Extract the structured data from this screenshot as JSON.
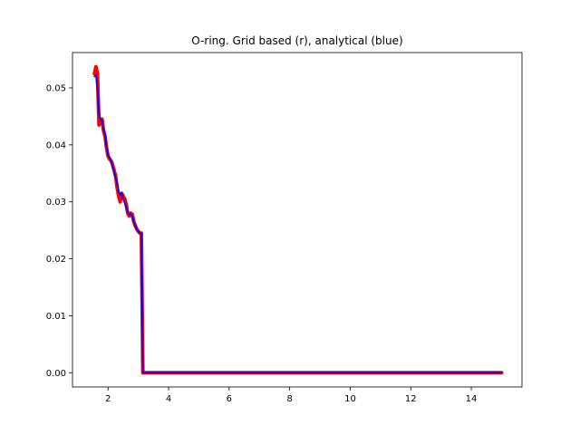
{
  "chart_data": {
    "type": "line",
    "title": "O-ring. Grid based (r), analytical (blue)",
    "xlabel": "",
    "ylabel": "",
    "xlim": [
      0.825,
      15.675
    ],
    "ylim": [
      -0.0025,
      0.0562
    ],
    "x_ticks": [
      2,
      4,
      6,
      8,
      10,
      12,
      14
    ],
    "x_tick_labels": [
      "2",
      "4",
      "6",
      "8",
      "10",
      "12",
      "14"
    ],
    "y_ticks": [
      0.0,
      0.01,
      0.02,
      0.03,
      0.04,
      0.05
    ],
    "y_tick_labels": [
      "0.00",
      "0.01",
      "0.02",
      "0.03",
      "0.04",
      "0.05"
    ],
    "grid": false,
    "legend": "none",
    "series": [
      {
        "color": "#ff0000",
        "line_width": "thick",
        "x": [
          1.55,
          1.6,
          1.65,
          1.7,
          1.75,
          1.8,
          1.85,
          1.9,
          1.95,
          2.0,
          2.05,
          2.1,
          2.15,
          2.2,
          2.25,
          2.3,
          2.35,
          2.4,
          2.45,
          2.5,
          2.55,
          2.6,
          2.65,
          2.7,
          2.75,
          2.8,
          2.85,
          2.9,
          2.95,
          3.0,
          3.05,
          3.1,
          3.15,
          3.2,
          3.25,
          15.0
        ],
        "y": [
          0.0525,
          0.0537,
          0.0525,
          0.0435,
          0.0445,
          0.0445,
          0.0425,
          0.0415,
          0.0395,
          0.038,
          0.0375,
          0.0372,
          0.0365,
          0.0355,
          0.0345,
          0.0325,
          0.031,
          0.03,
          0.0315,
          0.031,
          0.0305,
          0.0295,
          0.028,
          0.0275,
          0.028,
          0.0278,
          0.0265,
          0.0258,
          0.0252,
          0.0248,
          0.0245,
          0.0245,
          0.0,
          0.0,
          0.0,
          0.0
        ]
      },
      {
        "color": "#0000ff",
        "line_width": "normal",
        "x": [
          1.55,
          1.6,
          1.65,
          1.7,
          1.75,
          1.8,
          1.85,
          1.9,
          1.95,
          2.0,
          2.05,
          2.1,
          2.15,
          2.2,
          2.25,
          2.3,
          2.35,
          2.4,
          2.45,
          2.5,
          2.55,
          2.6,
          2.65,
          2.7,
          2.75,
          2.8,
          2.85,
          2.9,
          2.95,
          3.0,
          3.05,
          3.1,
          3.15,
          3.2,
          3.25,
          15.0
        ],
        "y": [
          0.052,
          0.0522,
          0.0498,
          0.0455,
          0.0445,
          0.0443,
          0.0428,
          0.0418,
          0.0395,
          0.0382,
          0.0378,
          0.0372,
          0.0362,
          0.0352,
          0.0342,
          0.0332,
          0.0318,
          0.0312,
          0.0315,
          0.0305,
          0.0298,
          0.029,
          0.0282,
          0.0278,
          0.0278,
          0.0275,
          0.0265,
          0.0258,
          0.0252,
          0.0248,
          0.0245,
          0.0245,
          0.0,
          0.0,
          0.0,
          0.0
        ]
      }
    ]
  }
}
